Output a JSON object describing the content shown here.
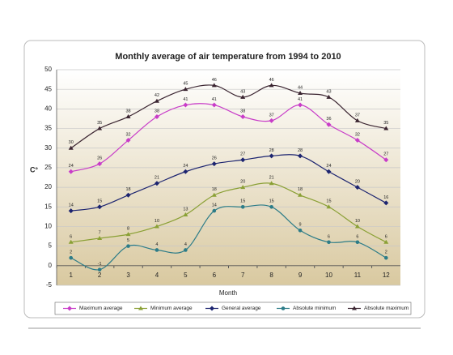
{
  "chart_data": {
    "type": "line",
    "title": "Monthly average of air temperature from 1994 to 2010",
    "x_label": "Month",
    "y_label": "C°",
    "categories": [
      "1",
      "2",
      "3",
      "4",
      "5",
      "6",
      "7",
      "8",
      "9",
      "10",
      "11",
      "12"
    ],
    "ylim": [
      -5,
      50
    ],
    "yticks": [
      -5,
      0,
      5,
      10,
      15,
      20,
      25,
      30,
      35,
      40,
      45,
      50
    ],
    "grid": true,
    "legend": "bottom",
    "series": [
      {
        "name": "Maximum average",
        "color": "#c83cc8",
        "marker": "diamond",
        "values": [
          24,
          26,
          32,
          38,
          41,
          41,
          38,
          37,
          41,
          36,
          32,
          27
        ]
      },
      {
        "name": "Minimum average",
        "color": "#8aa035",
        "marker": "triangle",
        "values": [
          6,
          7,
          8,
          10,
          13,
          18,
          20,
          21,
          18,
          15,
          10,
          6
        ]
      },
      {
        "name": "General average",
        "color": "#1c2470",
        "marker": "diamond",
        "values": [
          14,
          15,
          18,
          21,
          24,
          26,
          27,
          28,
          28,
          24,
          20,
          16
        ]
      },
      {
        "name": "Absolute minimum",
        "color": "#2c7c88",
        "marker": "circle",
        "values": [
          2,
          -1,
          5,
          4,
          4,
          14,
          15,
          15,
          9,
          6,
          6,
          2
        ]
      },
      {
        "name": "Absolute maximum",
        "color": "#3a2430",
        "marker": "triangle",
        "values": [
          30,
          35,
          38,
          42,
          45,
          46,
          43,
          46,
          44,
          43,
          37,
          35
        ]
      }
    ]
  }
}
